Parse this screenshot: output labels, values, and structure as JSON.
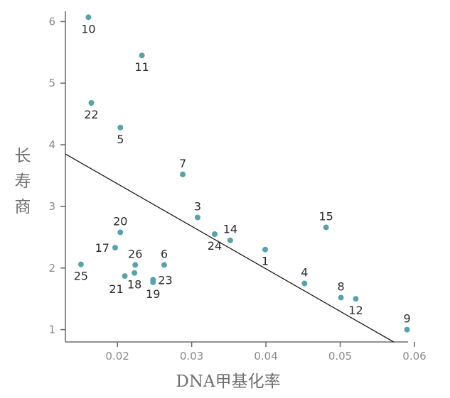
{
  "chart_data": {
    "type": "scatter",
    "xlabel": "DNA甲基化率",
    "ylabel": "长寿商",
    "xlim": [
      0.013,
      0.06
    ],
    "ylim": [
      0.8,
      6.2
    ],
    "x_ticks": [
      {
        "value": 0.02,
        "label": "0.02"
      },
      {
        "value": 0.03,
        "label": "0.03"
      },
      {
        "value": 0.04,
        "label": "0.04"
      },
      {
        "value": 0.05,
        "label": "0.05"
      },
      {
        "value": 0.06,
        "label": "0.06"
      }
    ],
    "y_ticks": [
      {
        "value": 1,
        "label": "1"
      },
      {
        "value": 2,
        "label": "2"
      },
      {
        "value": 3,
        "label": "3"
      },
      {
        "value": 4,
        "label": "4"
      },
      {
        "value": 5,
        "label": "5"
      },
      {
        "value": 6,
        "label": "6"
      }
    ],
    "points": [
      {
        "label": "10",
        "x": 0.0161,
        "y": 6.07,
        "label_pos": "below"
      },
      {
        "label": "11",
        "x": 0.0233,
        "y": 5.45,
        "label_pos": "below"
      },
      {
        "label": "22",
        "x": 0.0165,
        "y": 4.68,
        "label_pos": "below"
      },
      {
        "label": "5",
        "x": 0.0204,
        "y": 4.28,
        "label_pos": "below"
      },
      {
        "label": "7",
        "x": 0.0288,
        "y": 3.52,
        "label_pos": "above"
      },
      {
        "label": "3",
        "x": 0.0308,
        "y": 2.82,
        "label_pos": "above"
      },
      {
        "label": "15",
        "x": 0.0481,
        "y": 2.66,
        "label_pos": "above"
      },
      {
        "label": "20",
        "x": 0.0204,
        "y": 2.58,
        "label_pos": "above"
      },
      {
        "label": "24",
        "x": 0.0331,
        "y": 2.55,
        "label_pos": "below"
      },
      {
        "label": "14",
        "x": 0.0352,
        "y": 2.45,
        "label_pos": "above"
      },
      {
        "label": "17",
        "x": 0.0197,
        "y": 2.33,
        "label_pos": "left"
      },
      {
        "label": "1",
        "x": 0.0399,
        "y": 2.3,
        "label_pos": "below"
      },
      {
        "label": "26",
        "x": 0.0224,
        "y": 2.05,
        "label_pos": "above"
      },
      {
        "label": "6",
        "x": 0.0263,
        "y": 2.05,
        "label_pos": "above"
      },
      {
        "label": "25",
        "x": 0.0151,
        "y": 2.06,
        "label_pos": "below"
      },
      {
        "label": "18",
        "x": 0.0223,
        "y": 1.92,
        "label_pos": "below"
      },
      {
        "label": "21",
        "x": 0.021,
        "y": 1.87,
        "label_pos": "belowleft"
      },
      {
        "label": "23",
        "x": 0.0248,
        "y": 1.81,
        "label_pos": "right"
      },
      {
        "label": "19",
        "x": 0.0248,
        "y": 1.77,
        "label_pos": "below"
      },
      {
        "label": "4",
        "x": 0.0452,
        "y": 1.75,
        "label_pos": "above"
      },
      {
        "label": "8",
        "x": 0.0501,
        "y": 1.52,
        "label_pos": "above"
      },
      {
        "label": "12",
        "x": 0.0521,
        "y": 1.5,
        "label_pos": "below"
      },
      {
        "label": "9",
        "x": 0.059,
        "y": 1.0,
        "label_pos": "above"
      }
    ],
    "trendline": {
      "x": [
        0.013,
        0.0572
      ],
      "y": [
        3.85,
        0.8
      ]
    },
    "grid": false,
    "legend": "none",
    "point_color": "#5aa1a8",
    "line_color": "#1a1a1a",
    "axis_color": "#6e6e6e"
  }
}
